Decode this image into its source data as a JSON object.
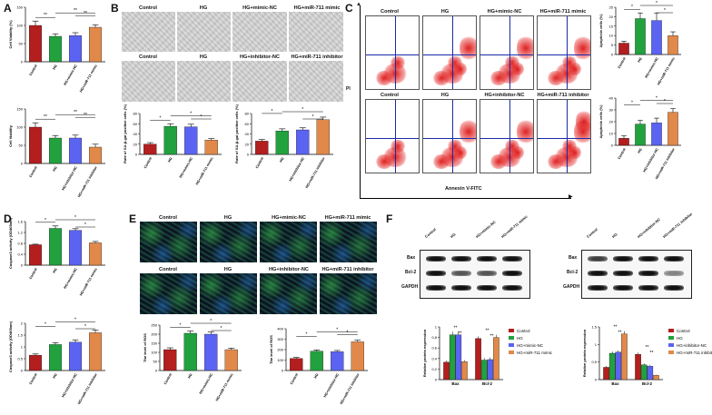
{
  "panels": {
    "A": "A",
    "B": "B",
    "C": "C",
    "D": "D",
    "E": "E",
    "F": "F"
  },
  "colors": {
    "control": "#b31e1e",
    "hg": "#22a13f",
    "nc": "#5b63f2",
    "mir": "#e0894b",
    "grey": "#555555"
  },
  "panel_B": {
    "row1_labels": [
      "Control",
      "HG",
      "HG+mimic-NC",
      "HG+miR-711 mimic"
    ],
    "row2_labels": [
      "Control",
      "HG",
      "HG+inhibitor-NC",
      "HG+miR-711 inhibitor"
    ]
  },
  "panel_C": {
    "row1_labels": [
      "Control",
      "HG",
      "HG+mimic-NC",
      "HG+miR-711 mimic"
    ],
    "row2_labels": [
      "Control",
      "HG",
      "HG+inhibitor-NC",
      "HG+miR-711 inhibitor"
    ],
    "y_axis": "PI",
    "x_axis": "Annexin V-FITC"
  },
  "panel_E": {
    "row1_labels": [
      "Control",
      "HG",
      "HG+mimic-NC",
      "HG+miR-711 mimic"
    ],
    "row2_labels": [
      "Control",
      "HG",
      "HG+inhibitor-NC",
      "HG+miR-711 inhibitor"
    ]
  },
  "panel_F": {
    "blot1_lanes": [
      "Control",
      "HG",
      "HG+mimic-NC",
      "HG+miR-711 mimic"
    ],
    "blot2_lanes": [
      "Control",
      "HG",
      "HG+inhibitor-NC",
      "HG+miR-711 inhibitor"
    ],
    "proteins": [
      "Bax",
      "Bcl-2",
      "GAPDH"
    ]
  },
  "chart_data": [
    {
      "id": "A1",
      "type": "bar",
      "ylabel": "Cell Viability (%)",
      "ylim": [
        0,
        150
      ],
      "ticks": [
        0,
        50,
        100,
        150
      ],
      "categories": [
        "Control",
        "HG",
        "HG+mimic-NC",
        "HG+miR-711 mimic"
      ],
      "values": [
        100,
        70,
        72,
        95
      ],
      "errors": [
        12,
        7,
        8,
        7
      ],
      "sig": [
        {
          "a": 0,
          "b": 1,
          "t": "**"
        },
        {
          "a": 1,
          "b": 3,
          "t": "**"
        },
        {
          "a": 2,
          "b": 3,
          "t": "**"
        }
      ]
    },
    {
      "id": "A2",
      "type": "bar",
      "ylabel": "Cell Viability",
      "ylim": [
        0,
        150
      ],
      "ticks": [
        0,
        50,
        100,
        150
      ],
      "categories": [
        "Control",
        "HG",
        "HG+inhibitor-NC",
        "HG+miR-711 inhibitor"
      ],
      "values": [
        100,
        70,
        70,
        45
      ],
      "errors": [
        12,
        7,
        8,
        8
      ],
      "sig": [
        {
          "a": 0,
          "b": 1,
          "t": "**"
        },
        {
          "a": 1,
          "b": 3,
          "t": "**"
        },
        {
          "a": 2,
          "b": 3,
          "t": "**"
        }
      ]
    },
    {
      "id": "B1",
      "type": "bar",
      "ylabel": "Rate of SA-β-gal positive cells (%)",
      "ylim": [
        0,
        80
      ],
      "ticks": [
        0,
        20,
        40,
        60,
        80
      ],
      "categories": [
        "Control",
        "HG",
        "HG+mimic-NC",
        "HG+miR-711 mimic"
      ],
      "values": [
        20,
        55,
        54,
        28
      ],
      "errors": [
        3,
        5,
        5,
        3
      ],
      "sig": [
        {
          "a": 0,
          "b": 1,
          "t": "*"
        },
        {
          "a": 1,
          "b": 3,
          "t": "*"
        },
        {
          "a": 2,
          "b": 3,
          "t": "*"
        }
      ]
    },
    {
      "id": "B2",
      "type": "bar",
      "ylabel": "Rate of SA-β-gal positive cells (%)",
      "ylim": [
        0,
        80
      ],
      "ticks": [
        0,
        20,
        40,
        60,
        80
      ],
      "categories": [
        "Control",
        "HG",
        "HG+inhibitor-NC",
        "HG+miR-711 inhibitor"
      ],
      "values": [
        26,
        46,
        48,
        68
      ],
      "errors": [
        3,
        4,
        4,
        5
      ],
      "sig": [
        {
          "a": 0,
          "b": 1,
          "t": "*"
        },
        {
          "a": 1,
          "b": 3,
          "t": "*"
        },
        {
          "a": 2,
          "b": 3,
          "t": "*"
        }
      ]
    },
    {
      "id": "C1",
      "type": "bar",
      "ylabel": "Apoptosis cells (%)",
      "ylim": [
        0,
        25
      ],
      "ticks": [
        0,
        5,
        10,
        15,
        20,
        25
      ],
      "categories": [
        "Control",
        "HG",
        "HG+mimic-NC",
        "HG+miR-711 mimic"
      ],
      "values": [
        6,
        19,
        18,
        10
      ],
      "errors": [
        1,
        3,
        4,
        2
      ],
      "sig": [
        {
          "a": 0,
          "b": 1,
          "t": "*"
        },
        {
          "a": 1,
          "b": 3,
          "t": "*"
        },
        {
          "a": 2,
          "b": 3,
          "t": "*"
        }
      ]
    },
    {
      "id": "C2",
      "type": "bar",
      "ylabel": "Apoptosis cells (%)",
      "ylim": [
        0,
        40
      ],
      "ticks": [
        0,
        10,
        20,
        30,
        40
      ],
      "categories": [
        "Control",
        "HG",
        "HG+inhibitor-NC",
        "HG+miR-711 inhibitor"
      ],
      "values": [
        6,
        18,
        19,
        28
      ],
      "errors": [
        2,
        3,
        4,
        3
      ],
      "sig": [
        {
          "a": 0,
          "b": 1,
          "t": "*"
        },
        {
          "a": 1,
          "b": 3,
          "t": "*"
        },
        {
          "a": 2,
          "b": 3,
          "t": "*"
        }
      ]
    },
    {
      "id": "D1",
      "type": "bar",
      "ylabel": "Caspase3 activity (OD405nm)",
      "ylim": [
        0,
        1.6
      ],
      "ticks": [
        0,
        0.4,
        0.8,
        1.2,
        1.6
      ],
      "categories": [
        "Control",
        "HG",
        "HG+mimic-NC",
        "HG+miR-711 mimic"
      ],
      "values": [
        0.75,
        1.35,
        1.28,
        0.82
      ],
      "errors": [
        0.02,
        0.09,
        0.06,
        0.05
      ],
      "sig": [
        {
          "a": 0,
          "b": 1,
          "t": "*"
        },
        {
          "a": 1,
          "b": 3,
          "t": "*"
        },
        {
          "a": 2,
          "b": 3,
          "t": "*"
        }
      ]
    },
    {
      "id": "D2",
      "type": "bar",
      "ylabel": "Caspase3 activity (OD405nm)",
      "ylim": [
        0,
        2.0
      ],
      "ticks": [
        0,
        0.5,
        1.0,
        1.5,
        2.0
      ],
      "categories": [
        "Control",
        "HG",
        "HG+inhibitor-NC",
        "HG+miR-711 inhibitor"
      ],
      "values": [
        0.65,
        1.1,
        1.2,
        1.6
      ],
      "errors": [
        0.05,
        0.08,
        0.1,
        0.12
      ],
      "sig": [
        {
          "a": 0,
          "b": 1,
          "t": "*"
        },
        {
          "a": 1,
          "b": 3,
          "t": "*"
        },
        {
          "a": 2,
          "b": 3,
          "t": "*"
        }
      ]
    },
    {
      "id": "E1",
      "type": "bar",
      "ylabel": "The level of ROS",
      "ylim": [
        0,
        250
      ],
      "ticks": [
        0,
        50,
        100,
        150,
        200,
        250
      ],
      "categories": [
        "Control",
        "HG",
        "HG+mimic-NC",
        "HG+miR-711 mimic"
      ],
      "values": [
        115,
        205,
        200,
        115
      ],
      "errors": [
        10,
        12,
        12,
        8
      ],
      "sig": [
        {
          "a": 0,
          "b": 1,
          "t": "*"
        },
        {
          "a": 1,
          "b": 3,
          "t": "*"
        },
        {
          "a": 2,
          "b": 3,
          "t": "*"
        }
      ]
    },
    {
      "id": "E2",
      "type": "bar",
      "ylabel": "The level of ROS",
      "ylim": [
        0,
        400
      ],
      "ticks": [
        0,
        100,
        200,
        300,
        400
      ],
      "categories": [
        "Control",
        "HG",
        "HG+inhibitor-NC",
        "HG+miR-711 inhibitor"
      ],
      "values": [
        115,
        185,
        180,
        275
      ],
      "errors": [
        10,
        12,
        12,
        15
      ],
      "sig": [
        {
          "a": 0,
          "b": 1,
          "t": "*"
        },
        {
          "a": 1,
          "b": 3,
          "t": "*"
        },
        {
          "a": 2,
          "b": 3,
          "t": "*"
        }
      ]
    },
    {
      "id": "F1",
      "type": "bar",
      "ylabel": "Relative protein expression",
      "ylim": [
        0,
        1.0
      ],
      "ticks": [
        0,
        0.2,
        0.4,
        0.6,
        0.8,
        1.0
      ],
      "groups": [
        "Bax",
        "Bcl-2"
      ],
      "series": [
        {
          "name": "Control",
          "values": [
            0.33,
            0.78
          ]
        },
        {
          "name": "HG",
          "values": [
            0.85,
            0.37
          ]
        },
        {
          "name": "HG+mimic-NC",
          "values": [
            0.85,
            0.38
          ]
        },
        {
          "name": "HG+miR-711 mimic",
          "values": [
            0.34,
            0.8
          ]
        }
      ],
      "errors": [
        [
          0.03,
          0.04
        ],
        [
          0.06,
          0.04
        ],
        [
          0.06,
          0.04
        ],
        [
          0.03,
          0.05
        ]
      ],
      "sig_labels": [
        "**",
        "**",
        "**",
        "**",
        "**",
        "**"
      ]
    },
    {
      "id": "F2",
      "type": "bar",
      "ylabel": "Relative protein expression",
      "ylim": [
        0,
        1.5
      ],
      "ticks": [
        0,
        0.5,
        1.0,
        1.5
      ],
      "groups": [
        "Bax",
        "Bcl-2"
      ],
      "series": [
        {
          "name": "Control",
          "values": [
            0.35,
            0.72
          ]
        },
        {
          "name": "HG",
          "values": [
            0.75,
            0.42
          ]
        },
        {
          "name": "HG+inhibitor-NC",
          "values": [
            0.78,
            0.38
          ]
        },
        {
          "name": "HG+miR-711 inhibitor",
          "values": [
            1.3,
            0.12
          ]
        }
      ],
      "errors": [
        [
          0.04,
          0.05
        ],
        [
          0.05,
          0.04
        ],
        [
          0.05,
          0.04
        ],
        [
          0.08,
          0.02
        ]
      ],
      "sig_labels": [
        "**",
        "**",
        "**",
        "**",
        "**",
        "**"
      ]
    }
  ]
}
